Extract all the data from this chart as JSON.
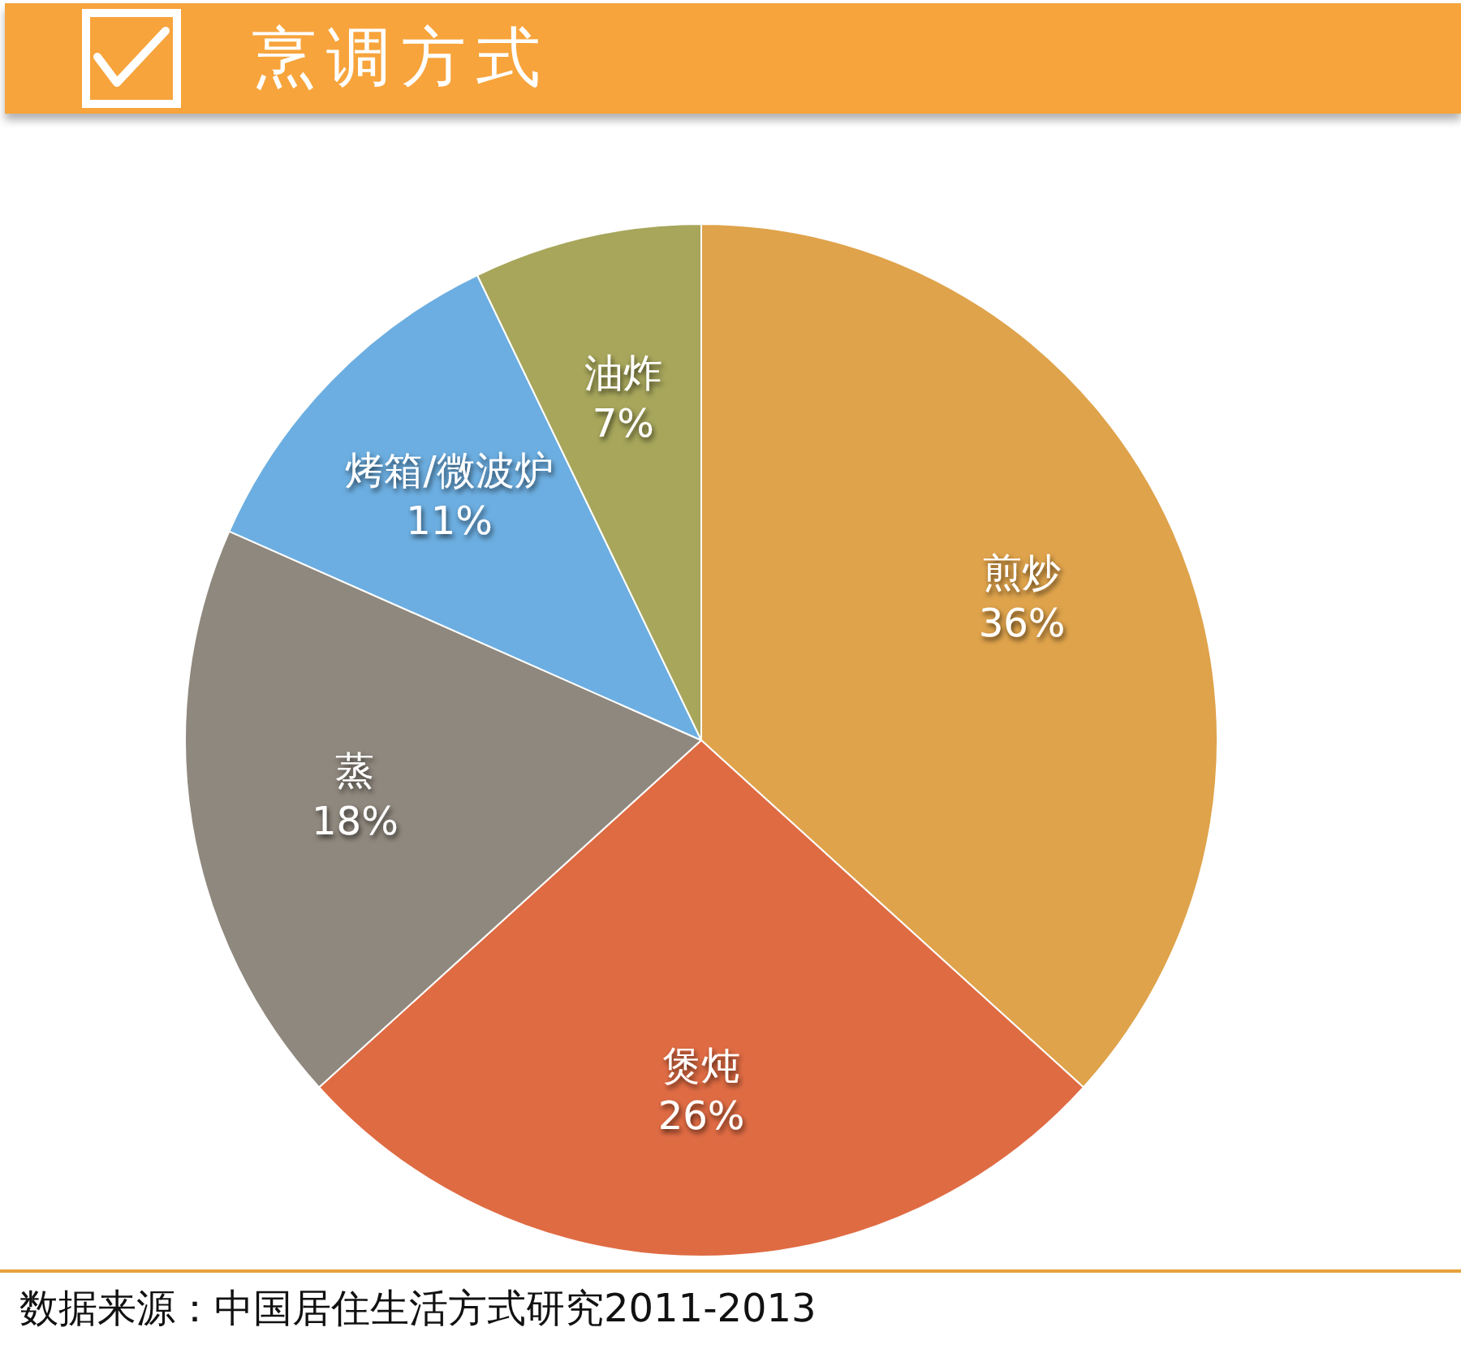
{
  "chart_data": {
    "type": "pie",
    "title": "烹调方式",
    "categories": [
      "煎炒",
      "煲炖",
      "蒸",
      "烤箱/微波炉",
      "油炸"
    ],
    "values": [
      36,
      26,
      18,
      11,
      7
    ],
    "value_labels": [
      "36%",
      "26%",
      "18%",
      "11%",
      "7%"
    ],
    "colors": [
      "#dfa34b",
      "#df6b43",
      "#8f887e",
      "#6caee1",
      "#a7a65b"
    ],
    "annotations": [
      "数据来源：中国居住生活方式研究2011-2013"
    ]
  }
}
